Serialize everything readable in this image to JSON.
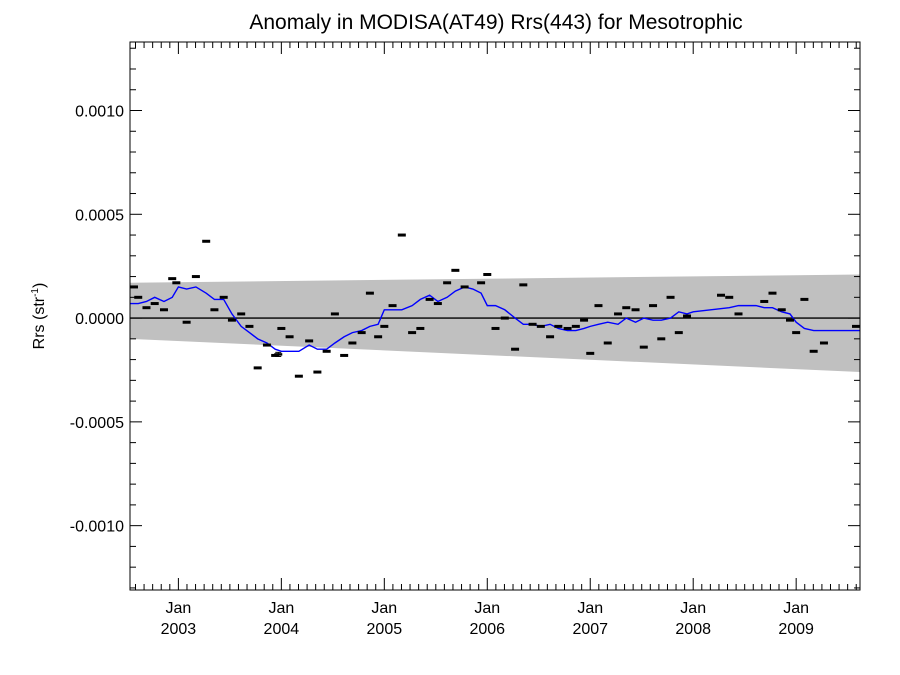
{
  "chart_data": {
    "type": "scatter",
    "title": "Anomaly in MODISA(AT49) Rrs(443) for Mesotrophic",
    "ylabel_main": "Rrs (str",
    "ylabel_sup": "-1",
    "ylabel_end": ")",
    "xlim": [
      2002.53,
      2009.62
    ],
    "ylim": [
      -0.00131,
      0.00133
    ],
    "x_ticks": [
      {
        "value": 2003.0,
        "month": "Jan",
        "year": "2003"
      },
      {
        "value": 2004.0,
        "month": "Jan",
        "year": "2004"
      },
      {
        "value": 2005.0,
        "month": "Jan",
        "year": "2005"
      },
      {
        "value": 2006.0,
        "month": "Jan",
        "year": "2006"
      },
      {
        "value": 2007.0,
        "month": "Jan",
        "year": "2007"
      },
      {
        "value": 2008.0,
        "month": "Jan",
        "year": "2008"
      },
      {
        "value": 2009.0,
        "month": "Jan",
        "year": "2009"
      }
    ],
    "y_ticks": [
      {
        "value": 0.001,
        "label": "0.0010"
      },
      {
        "value": 0.0005,
        "label": "0.0005"
      },
      {
        "value": 0.0,
        "label": "0.0000"
      },
      {
        "value": -0.0005,
        "label": "-0.0005"
      },
      {
        "value": -0.001,
        "label": "-0.0010"
      }
    ],
    "zero_line": 0.0,
    "band": {
      "upper": [
        [
          2002.53,
          0.00017
        ],
        [
          2009.62,
          0.00021
        ]
      ],
      "lower": [
        [
          2002.53,
          -0.0001
        ],
        [
          2009.62,
          -0.00026
        ]
      ],
      "color": "#c0c0c0"
    },
    "points_color": "#000000",
    "points": [
      [
        2002.53,
        0.00015
      ],
      [
        2002.61,
        0.0001
      ],
      [
        2002.69,
        5e-05
      ],
      [
        2002.77,
        7e-05
      ],
      [
        2002.86,
        4e-05
      ],
      [
        2002.94,
        0.00019
      ],
      [
        2002.98,
        0.00017
      ],
      [
        2003.08,
        -2e-05
      ],
      [
        2003.17,
        0.0002
      ],
      [
        2003.27,
        0.00037
      ],
      [
        2003.35,
        4e-05
      ],
      [
        2003.44,
        0.0001
      ],
      [
        2003.52,
        -1e-05
      ],
      [
        2003.61,
        2e-05
      ],
      [
        2003.69,
        -4e-05
      ],
      [
        2003.77,
        -0.00024
      ],
      [
        2003.86,
        -0.00013
      ],
      [
        2003.94,
        -0.00018
      ],
      [
        2004.0,
        -5e-05
      ],
      [
        2004.08,
        -9e-05
      ],
      [
        2004.17,
        -0.00028
      ],
      [
        2004.27,
        -0.00011
      ],
      [
        2004.35,
        -0.00026
      ],
      [
        2004.44,
        -0.00016
      ],
      [
        2004.52,
        2e-05
      ],
      [
        2004.61,
        -0.00018
      ],
      [
        2004.69,
        -0.00012
      ],
      [
        2004.78,
        -7e-05
      ],
      [
        2004.86,
        0.00012
      ],
      [
        2004.94,
        -9e-05
      ],
      [
        2005.0,
        -4e-05
      ],
      [
        2005.08,
        6e-05
      ],
      [
        2005.17,
        0.0004
      ],
      [
        2005.27,
        -7e-05
      ],
      [
        2005.35,
        -5e-05
      ],
      [
        2005.44,
        9e-05
      ],
      [
        2005.52,
        7e-05
      ],
      [
        2005.61,
        0.00017
      ],
      [
        2005.69,
        0.00023
      ],
      [
        2005.78,
        0.00015
      ],
      [
        2005.94,
        0.00017
      ],
      [
        2006.0,
        0.00021
      ],
      [
        2006.08,
        -5e-05
      ],
      [
        2006.17,
        0.0
      ],
      [
        2006.27,
        -0.00015
      ],
      [
        2006.35,
        0.00016
      ],
      [
        2006.44,
        -3e-05
      ],
      [
        2006.52,
        -4e-05
      ],
      [
        2006.61,
        -9e-05
      ],
      [
        2006.69,
        -4e-05
      ],
      [
        2006.78,
        -5e-05
      ],
      [
        2006.86,
        -4e-05
      ],
      [
        2006.94,
        -1e-05
      ],
      [
        2007.0,
        -0.00017
      ],
      [
        2007.08,
        6e-05
      ],
      [
        2007.17,
        -0.00012
      ],
      [
        2007.27,
        2e-05
      ],
      [
        2007.35,
        5e-05
      ],
      [
        2007.44,
        4e-05
      ],
      [
        2007.52,
        -0.00014
      ],
      [
        2007.61,
        6e-05
      ],
      [
        2007.69,
        -0.0001
      ],
      [
        2007.78,
        0.0001
      ],
      [
        2007.86,
        -7e-05
      ],
      [
        2007.94,
        1e-05
      ],
      [
        2008.27,
        0.00011
      ],
      [
        2008.35,
        0.0001
      ],
      [
        2008.44,
        2e-05
      ],
      [
        2008.69,
        8e-05
      ],
      [
        2008.77,
        0.00012
      ],
      [
        2008.86,
        4e-05
      ],
      [
        2008.94,
        -1e-05
      ],
      [
        2009.0,
        -7e-05
      ],
      [
        2009.08,
        9e-05
      ],
      [
        2009.17,
        -0.00016
      ],
      [
        2009.27,
        -0.00012
      ],
      [
        2009.6,
        -4e-05
      ]
    ],
    "error_bar": {
      "x": 2003.97,
      "y": -0.000175,
      "half": 1e-05
    },
    "line_color": "#0000ff",
    "line": [
      [
        2002.53,
        7e-05
      ],
      [
        2002.61,
        7e-05
      ],
      [
        2002.69,
        8e-05
      ],
      [
        2002.77,
        0.0001
      ],
      [
        2002.86,
        8e-05
      ],
      [
        2002.94,
        0.0001
      ],
      [
        2003.0,
        0.00015
      ],
      [
        2003.08,
        0.00014
      ],
      [
        2003.17,
        0.00015
      ],
      [
        2003.27,
        0.00012
      ],
      [
        2003.35,
        9e-05
      ],
      [
        2003.44,
        9e-05
      ],
      [
        2003.52,
        2e-05
      ],
      [
        2003.61,
        -4e-05
      ],
      [
        2003.69,
        -7e-05
      ],
      [
        2003.77,
        -0.0001
      ],
      [
        2003.86,
        -0.00012
      ],
      [
        2003.94,
        -0.00015
      ],
      [
        2004.0,
        -0.00016
      ],
      [
        2004.08,
        -0.00016
      ],
      [
        2004.17,
        -0.00016
      ],
      [
        2004.27,
        -0.00013
      ],
      [
        2004.35,
        -0.00015
      ],
      [
        2004.44,
        -0.00015
      ],
      [
        2004.52,
        -0.00012
      ],
      [
        2004.61,
        -9e-05
      ],
      [
        2004.69,
        -7e-05
      ],
      [
        2004.78,
        -6e-05
      ],
      [
        2004.86,
        -4e-05
      ],
      [
        2004.94,
        -3e-05
      ],
      [
        2005.0,
        4e-05
      ],
      [
        2005.08,
        4e-05
      ],
      [
        2005.17,
        4e-05
      ],
      [
        2005.27,
        6e-05
      ],
      [
        2005.35,
        9e-05
      ],
      [
        2005.44,
        0.00011
      ],
      [
        2005.52,
        8e-05
      ],
      [
        2005.61,
        0.0001
      ],
      [
        2005.69,
        0.00013
      ],
      [
        2005.78,
        0.00015
      ],
      [
        2005.86,
        0.00014
      ],
      [
        2005.94,
        0.00012
      ],
      [
        2006.0,
        6e-05
      ],
      [
        2006.08,
        6e-05
      ],
      [
        2006.17,
        4e-05
      ],
      [
        2006.27,
        0.0
      ],
      [
        2006.35,
        -3e-05
      ],
      [
        2006.44,
        -3e-05
      ],
      [
        2006.52,
        -4e-05
      ],
      [
        2006.61,
        -3e-05
      ],
      [
        2006.69,
        -5e-05
      ],
      [
        2006.78,
        -6e-05
      ],
      [
        2006.86,
        -6e-05
      ],
      [
        2006.94,
        -5e-05
      ],
      [
        2007.0,
        -4e-05
      ],
      [
        2007.08,
        -3e-05
      ],
      [
        2007.17,
        -2e-05
      ],
      [
        2007.27,
        -3e-05
      ],
      [
        2007.35,
        0.0
      ],
      [
        2007.44,
        -2e-05
      ],
      [
        2007.52,
        0.0
      ],
      [
        2007.61,
        -1e-05
      ],
      [
        2007.69,
        -1e-05
      ],
      [
        2007.78,
        0.0
      ],
      [
        2007.86,
        3e-05
      ],
      [
        2007.94,
        2e-05
      ],
      [
        2008.0,
        3e-05
      ],
      [
        2008.17,
        4e-05
      ],
      [
        2008.35,
        5e-05
      ],
      [
        2008.44,
        6e-05
      ],
      [
        2008.61,
        6e-05
      ],
      [
        2008.69,
        5e-05
      ],
      [
        2008.77,
        5e-05
      ],
      [
        2008.86,
        3e-05
      ],
      [
        2008.94,
        2e-05
      ],
      [
        2009.0,
        -2e-05
      ],
      [
        2009.08,
        -5e-05
      ],
      [
        2009.17,
        -6e-05
      ],
      [
        2009.35,
        -6e-05
      ],
      [
        2009.62,
        -6e-05
      ]
    ]
  }
}
